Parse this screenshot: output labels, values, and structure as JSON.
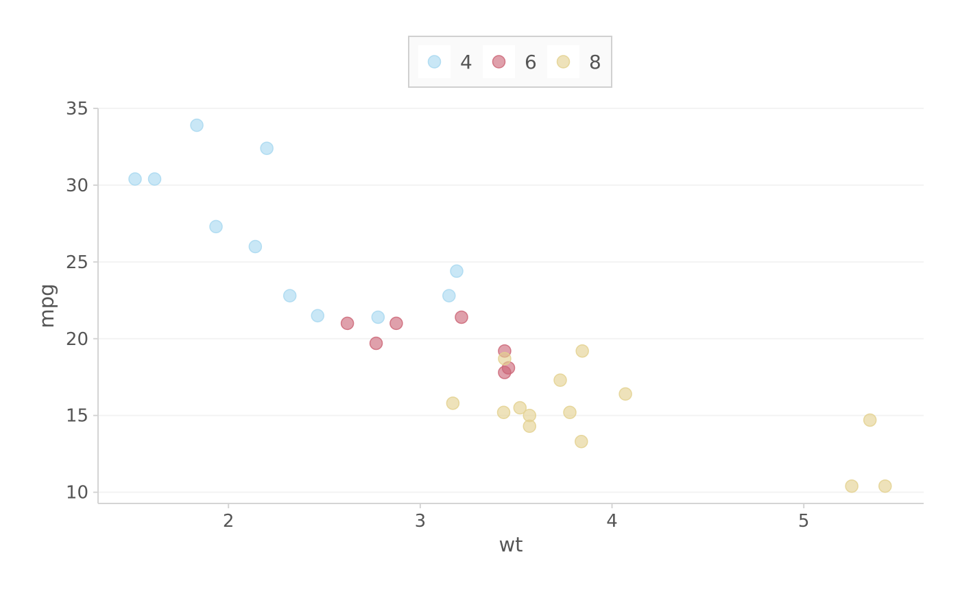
{
  "chart_data": {
    "type": "scatter",
    "xlabel": "wt",
    "ylabel": "mpg",
    "xlim": [
      1.32,
      5.625
    ],
    "ylim": [
      9.27,
      35.0
    ],
    "xticks": [
      2,
      3,
      4,
      5
    ],
    "yticks": [
      10,
      15,
      20,
      25,
      30,
      35
    ],
    "grid": "horizontal",
    "legend_position": "top",
    "series": [
      {
        "name": "4",
        "color": "#a8d8f0",
        "points": [
          [
            2.32,
            22.8
          ],
          [
            3.19,
            24.4
          ],
          [
            3.15,
            22.8
          ],
          [
            2.2,
            32.4
          ],
          [
            1.615,
            30.4
          ],
          [
            1.835,
            33.9
          ],
          [
            2.465,
            21.5
          ],
          [
            1.935,
            27.3
          ],
          [
            2.14,
            26.0
          ],
          [
            1.513,
            30.4
          ],
          [
            2.78,
            21.4
          ]
        ]
      },
      {
        "name": "6",
        "color": "#cc6677",
        "points": [
          [
            2.62,
            21.0
          ],
          [
            2.875,
            21.0
          ],
          [
            3.215,
            21.4
          ],
          [
            3.46,
            18.1
          ],
          [
            3.44,
            19.2
          ],
          [
            3.44,
            17.8
          ],
          [
            2.77,
            19.7
          ]
        ]
      },
      {
        "name": "8",
        "color": "#e3d18f",
        "points": [
          [
            3.44,
            18.7
          ],
          [
            3.57,
            14.3
          ],
          [
            4.07,
            16.4
          ],
          [
            3.73,
            17.3
          ],
          [
            3.78,
            15.2
          ],
          [
            5.25,
            10.4
          ],
          [
            5.424,
            10.4
          ],
          [
            5.345,
            14.7
          ],
          [
            3.52,
            15.5
          ],
          [
            3.435,
            15.2
          ],
          [
            3.84,
            13.3
          ],
          [
            3.845,
            19.2
          ],
          [
            3.17,
            15.8
          ],
          [
            3.57,
            15.0
          ]
        ]
      }
    ]
  }
}
